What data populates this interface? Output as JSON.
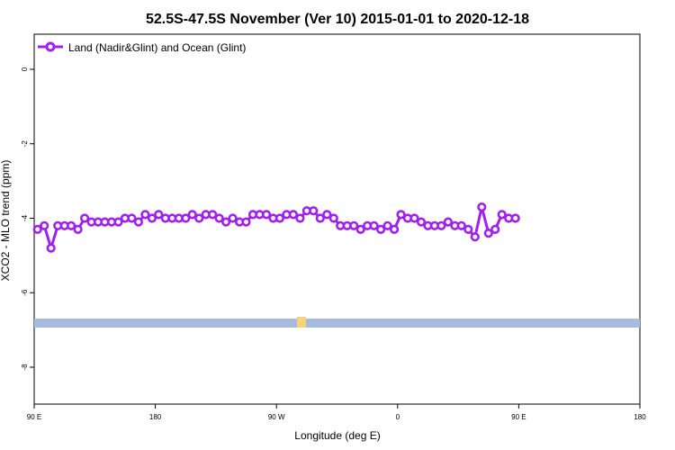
{
  "chart_data": {
    "type": "line",
    "title": "52.5S-47.5S November (Ver 10)   2015-01-01 to 2020-12-18",
    "xlabel": "Longitude (deg E)",
    "ylabel": "XCO2 - MLO trend (ppm)",
    "xlim": [
      90,
      450
    ],
    "ylim": [
      -9.0,
      0.9
    ],
    "x_ticks": [
      {
        "value": 90,
        "label": "90 E"
      },
      {
        "value": 180,
        "label": "180"
      },
      {
        "value": 270,
        "label": "90 W"
      },
      {
        "value": 360,
        "label": "0"
      },
      {
        "value": 450,
        "label": "90 E"
      },
      {
        "value": 540,
        "label": "180"
      }
    ],
    "y_ticks": [
      {
        "value": 0,
        "label": "0"
      },
      {
        "value": -2,
        "label": "-2"
      },
      {
        "value": -4,
        "label": "-4"
      },
      {
        "value": -6,
        "label": "-6"
      },
      {
        "value": -8,
        "label": "-8"
      }
    ],
    "legend": {
      "position": "top-left"
    },
    "series": [
      {
        "name": "Land (Nadir&Glint) and Ocean (Glint)",
        "color": "#a020f0",
        "x": [
          92.5,
          97.5,
          102.5,
          107.5,
          112.5,
          117.5,
          122.5,
          127.5,
          132.5,
          137.5,
          142.5,
          147.5,
          152.5,
          157.5,
          162.5,
          167.5,
          172.5,
          177.5,
          182.5,
          187.5,
          192.5,
          197.5,
          202.5,
          207.5,
          212.5,
          217.5,
          222.5,
          227.5,
          232.5,
          237.5,
          242.5,
          247.5,
          252.5,
          257.5,
          262.5,
          267.5,
          272.5,
          277.5,
          282.5,
          287.5,
          292.5,
          297.5,
          302.5,
          307.5,
          312.5,
          317.5,
          322.5,
          327.5,
          332.5,
          337.5,
          342.5,
          347.5,
          352.5,
          357.5,
          362.5,
          367.5,
          372.5,
          377.5,
          382.5,
          387.5,
          392.5,
          397.5,
          402.5,
          407.5,
          412.5,
          417.5,
          422.5,
          427.5,
          432.5,
          437.5,
          442.5,
          447.5
        ],
        "values": [
          -4.3,
          -4.2,
          -4.8,
          -4.2,
          -4.2,
          -4.2,
          -4.3,
          -4.0,
          -4.1,
          -4.1,
          -4.1,
          -4.1,
          -4.1,
          -4.0,
          -4.0,
          -4.1,
          -3.9,
          -4.0,
          -3.9,
          -4.0,
          -4.0,
          -4.0,
          -4.0,
          -3.9,
          -4.0,
          -3.9,
          -3.9,
          -4.0,
          -4.1,
          -4.0,
          -4.1,
          -4.1,
          -3.9,
          -3.9,
          -3.9,
          -4.0,
          -4.0,
          -3.9,
          -3.9,
          -4.0,
          -3.8,
          -3.8,
          -4.0,
          -3.9,
          -4.0,
          -4.2,
          -4.2,
          -4.2,
          -4.3,
          -4.2,
          -4.2,
          -4.3,
          -4.2,
          -4.3,
          -3.9,
          -4.0,
          -4.0,
          -4.1,
          -4.2,
          -4.2,
          -4.2,
          -4.1,
          -4.2,
          -4.2,
          -4.3,
          -4.5,
          -3.7,
          -4.4,
          -4.3,
          -3.9,
          -4.0,
          -4.0
        ]
      }
    ]
  }
}
